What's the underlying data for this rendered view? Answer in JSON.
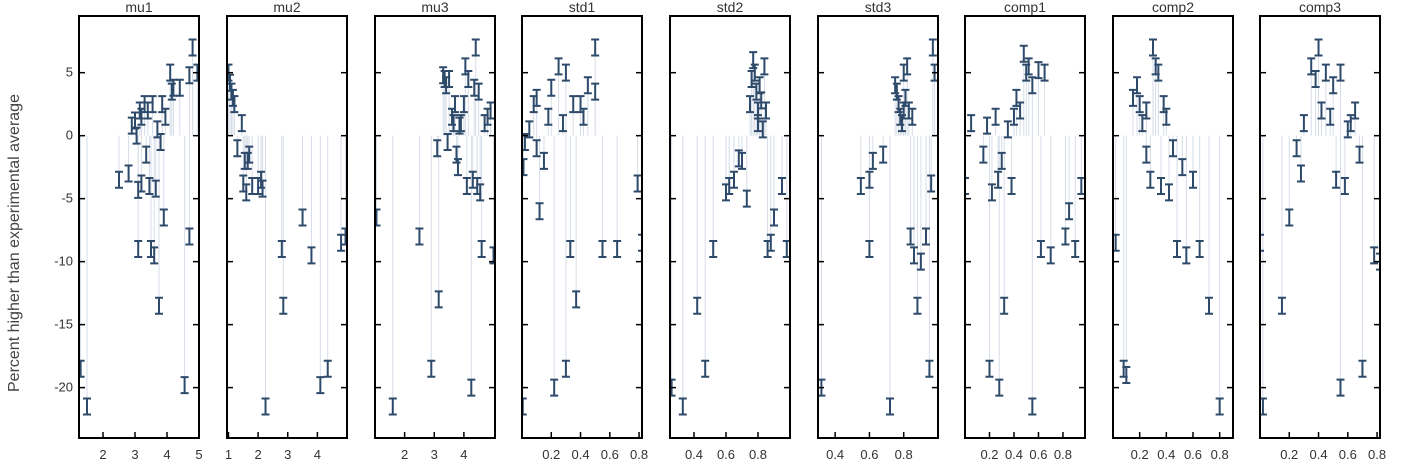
{
  "figure": {
    "ylabel": "Percent higher than experimental average"
  },
  "colors": {
    "marker": "#2e4a6b",
    "stem": "#d6dde8",
    "axis": "#000000"
  },
  "chart_data": {
    "type": "scatter",
    "error_bars": true,
    "grid": false,
    "legend": "none",
    "shared_y": true,
    "ylim": [
      -24,
      9.5
    ],
    "yticks": [
      5,
      0,
      -5,
      -10,
      -15,
      -20
    ],
    "panels": [
      {
        "title": "mu1",
        "xlim": [
          1.25,
          5.0
        ],
        "xticks": [
          2,
          3,
          4,
          5
        ],
        "points": [
          [
            1.3,
            -18.5
          ],
          [
            1.5,
            -21.5
          ],
          [
            2.5,
            -3.5
          ],
          [
            2.8,
            -3.0
          ],
          [
            2.9,
            0.8
          ],
          [
            3.0,
            1.2
          ],
          [
            3.05,
            0.0
          ],
          [
            3.1,
            -4.3
          ],
          [
            3.1,
            -9.0
          ],
          [
            3.15,
            2.0
          ],
          [
            3.2,
            1.5
          ],
          [
            3.2,
            -3.8
          ],
          [
            3.3,
            2.5
          ],
          [
            3.35,
            -1.5
          ],
          [
            3.4,
            2.0
          ],
          [
            3.45,
            -4.0
          ],
          [
            3.5,
            -9.0
          ],
          [
            3.55,
            2.5
          ],
          [
            3.6,
            -9.5
          ],
          [
            3.65,
            -4.2
          ],
          [
            3.7,
            0.5
          ],
          [
            3.75,
            -13.5
          ],
          [
            3.8,
            -0.5
          ],
          [
            3.85,
            2.5
          ],
          [
            3.9,
            -6.5
          ],
          [
            3.95,
            1.5
          ],
          [
            4.1,
            5.0
          ],
          [
            4.15,
            3.5
          ],
          [
            4.2,
            3.8
          ],
          [
            4.4,
            3.8
          ],
          [
            4.55,
            -19.8
          ],
          [
            4.7,
            4.8
          ],
          [
            4.7,
            -8.0
          ],
          [
            4.8,
            7.0
          ],
          [
            4.95,
            5.0
          ]
        ]
      },
      {
        "title": "mu2",
        "xlim": [
          0.95,
          5.0
        ],
        "xticks": [
          1,
          2,
          3,
          4
        ],
        "points": [
          [
            1.0,
            5.0
          ],
          [
            1.05,
            4.2
          ],
          [
            1.1,
            3.5
          ],
          [
            1.15,
            3.0
          ],
          [
            1.2,
            2.5
          ],
          [
            1.3,
            -1.0
          ],
          [
            1.45,
            1.0
          ],
          [
            1.5,
            -3.8
          ],
          [
            1.55,
            -2.0
          ],
          [
            1.6,
            -4.5
          ],
          [
            1.65,
            -2.0
          ],
          [
            1.7,
            -1.5
          ],
          [
            1.8,
            -4.0
          ],
          [
            2.0,
            -4.0
          ],
          [
            2.1,
            -3.5
          ],
          [
            2.15,
            -4.2
          ],
          [
            2.25,
            -21.5
          ],
          [
            2.8,
            -9.0
          ],
          [
            2.85,
            -13.5
          ],
          [
            3.5,
            -6.5
          ],
          [
            3.8,
            -9.5
          ],
          [
            4.1,
            -19.8
          ],
          [
            4.35,
            -18.5
          ],
          [
            4.8,
            -8.5
          ],
          [
            4.95,
            -8.0
          ]
        ]
      },
      {
        "title": "mu3",
        "xlim": [
          1.0,
          5.05
        ],
        "xticks": [
          2,
          3,
          4
        ],
        "points": [
          [
            1.05,
            -6.5
          ],
          [
            1.6,
            -21.5
          ],
          [
            2.5,
            -8.0
          ],
          [
            2.9,
            -18.5
          ],
          [
            3.1,
            -1.0
          ],
          [
            3.15,
            -13.0
          ],
          [
            3.3,
            4.8
          ],
          [
            3.35,
            4.5
          ],
          [
            3.4,
            4.0
          ],
          [
            3.45,
            -0.5
          ],
          [
            3.5,
            4.5
          ],
          [
            3.6,
            1.5
          ],
          [
            3.65,
            1.0
          ],
          [
            3.7,
            2.5
          ],
          [
            3.75,
            -1.5
          ],
          [
            3.8,
            -2.5
          ],
          [
            3.85,
            0.8
          ],
          [
            3.9,
            1.0
          ],
          [
            4.0,
            2.5
          ],
          [
            4.05,
            5.5
          ],
          [
            4.1,
            -4.0
          ],
          [
            4.15,
            4.5
          ],
          [
            4.25,
            -20.0
          ],
          [
            4.3,
            -3.5
          ],
          [
            4.35,
            3.8
          ],
          [
            4.4,
            7.0
          ],
          [
            4.45,
            -4.0
          ],
          [
            4.5,
            3.5
          ],
          [
            4.55,
            -4.5
          ],
          [
            4.6,
            -9.0
          ],
          [
            4.7,
            1.0
          ],
          [
            4.8,
            1.5
          ],
          [
            4.9,
            2.0
          ],
          [
            5.0,
            -9.5
          ]
        ]
      },
      {
        "title": "std1",
        "xlim": [
          0.0,
          0.82
        ],
        "xticks": [
          0.2,
          0.4,
          0.6,
          0.8
        ],
        "points": [
          [
            0.005,
            -21.5
          ],
          [
            0.01,
            -2.5
          ],
          [
            0.02,
            -0.5
          ],
          [
            0.05,
            0.5
          ],
          [
            0.08,
            2.5
          ],
          [
            0.1,
            -1.0
          ],
          [
            0.1,
            3.0
          ],
          [
            0.12,
            -6.0
          ],
          [
            0.15,
            -2.0
          ],
          [
            0.18,
            1.5
          ],
          [
            0.2,
            3.8
          ],
          [
            0.22,
            -20.0
          ],
          [
            0.25,
            5.5
          ],
          [
            0.28,
            1.0
          ],
          [
            0.3,
            5.0
          ],
          [
            0.3,
            -18.5
          ],
          [
            0.33,
            -9.0
          ],
          [
            0.35,
            2.5
          ],
          [
            0.37,
            -13.0
          ],
          [
            0.4,
            2.5
          ],
          [
            0.42,
            1.5
          ],
          [
            0.45,
            4.0
          ],
          [
            0.5,
            7.0
          ],
          [
            0.5,
            3.5
          ],
          [
            0.55,
            -9.0
          ],
          [
            0.65,
            -9.0
          ],
          [
            0.79,
            -3.8
          ],
          [
            0.82,
            -8.5
          ]
        ]
      },
      {
        "title": "std2",
        "xlim": [
          0.25,
          1.0
        ],
        "xticks": [
          0.4,
          0.6,
          0.8
        ],
        "points": [
          [
            0.26,
            -20.0
          ],
          [
            0.33,
            -21.5
          ],
          [
            0.42,
            -13.5
          ],
          [
            0.47,
            -18.5
          ],
          [
            0.52,
            -9.0
          ],
          [
            0.6,
            -4.5
          ],
          [
            0.62,
            -4.0
          ],
          [
            0.65,
            -3.5
          ],
          [
            0.68,
            -1.8
          ],
          [
            0.7,
            -2.0
          ],
          [
            0.73,
            -5.0
          ],
          [
            0.75,
            2.5
          ],
          [
            0.76,
            4.5
          ],
          [
            0.77,
            6.0
          ],
          [
            0.78,
            5.0
          ],
          [
            0.79,
            3.5
          ],
          [
            0.8,
            2.0
          ],
          [
            0.8,
            1.0
          ],
          [
            0.81,
            4.0
          ],
          [
            0.82,
            2.8
          ],
          [
            0.83,
            0.5
          ],
          [
            0.84,
            5.5
          ],
          [
            0.85,
            2.0
          ],
          [
            0.86,
            -9.0
          ],
          [
            0.88,
            -8.5
          ],
          [
            0.9,
            -6.5
          ],
          [
            0.95,
            -4.0
          ],
          [
            0.98,
            -9.0
          ]
        ]
      },
      {
        "title": "std3",
        "xlim": [
          0.3,
          1.0
        ],
        "xticks": [
          0.4,
          0.6,
          0.8
        ],
        "points": [
          [
            0.32,
            -20.0
          ],
          [
            0.55,
            -4.0
          ],
          [
            0.6,
            -3.5
          ],
          [
            0.6,
            -9.0
          ],
          [
            0.62,
            -2.0
          ],
          [
            0.68,
            -1.5
          ],
          [
            0.72,
            -21.5
          ],
          [
            0.75,
            4.0
          ],
          [
            0.76,
            3.5
          ],
          [
            0.77,
            2.5
          ],
          [
            0.78,
            1.5
          ],
          [
            0.79,
            1.0
          ],
          [
            0.8,
            5.0
          ],
          [
            0.8,
            2.0
          ],
          [
            0.81,
            3.0
          ],
          [
            0.82,
            5.5
          ],
          [
            0.83,
            2.0
          ],
          [
            0.84,
            -8.0
          ],
          [
            0.85,
            1.5
          ],
          [
            0.86,
            -9.5
          ],
          [
            0.88,
            -13.5
          ],
          [
            0.9,
            -10.0
          ],
          [
            0.93,
            -8.0
          ],
          [
            0.95,
            -18.5
          ],
          [
            0.96,
            -3.8
          ],
          [
            0.97,
            7.0
          ],
          [
            0.98,
            5.0
          ]
        ]
      },
      {
        "title": "comp1",
        "xlim": [
          0.0,
          0.98
        ],
        "xticks": [
          0.2,
          0.4,
          0.6,
          0.8
        ],
        "points": [
          [
            0.0,
            -4.0
          ],
          [
            0.05,
            1.0
          ],
          [
            0.15,
            -1.5
          ],
          [
            0.18,
            0.8
          ],
          [
            0.2,
            -18.5
          ],
          [
            0.22,
            -4.5
          ],
          [
            0.25,
            1.5
          ],
          [
            0.27,
            -3.5
          ],
          [
            0.28,
            -20.0
          ],
          [
            0.3,
            -2.0
          ],
          [
            0.32,
            -13.5
          ],
          [
            0.35,
            0.5
          ],
          [
            0.38,
            -4.0
          ],
          [
            0.4,
            1.5
          ],
          [
            0.42,
            3.0
          ],
          [
            0.45,
            2.0
          ],
          [
            0.48,
            6.5
          ],
          [
            0.5,
            5.0
          ],
          [
            0.52,
            5.5
          ],
          [
            0.55,
            4.0
          ],
          [
            0.55,
            -21.5
          ],
          [
            0.6,
            5.2
          ],
          [
            0.62,
            -9.0
          ],
          [
            0.65,
            5.0
          ],
          [
            0.7,
            -9.5
          ],
          [
            0.82,
            -8.0
          ],
          [
            0.85,
            -6.0
          ],
          [
            0.9,
            -9.0
          ],
          [
            0.95,
            -4.0
          ]
        ]
      },
      {
        "title": "comp2",
        "xlim": [
          0.0,
          0.9
        ],
        "xticks": [
          0.2,
          0.4,
          0.6,
          0.8
        ],
        "points": [
          [
            0.02,
            -8.5
          ],
          [
            0.08,
            -18.5
          ],
          [
            0.1,
            -19.0
          ],
          [
            0.15,
            3.0
          ],
          [
            0.18,
            4.0
          ],
          [
            0.2,
            2.5
          ],
          [
            0.22,
            1.0
          ],
          [
            0.25,
            2.0
          ],
          [
            0.25,
            -1.5
          ],
          [
            0.28,
            -3.5
          ],
          [
            0.3,
            7.0
          ],
          [
            0.32,
            5.5
          ],
          [
            0.34,
            5.0
          ],
          [
            0.36,
            -4.0
          ],
          [
            0.38,
            2.5
          ],
          [
            0.4,
            1.5
          ],
          [
            0.42,
            -4.5
          ],
          [
            0.45,
            -1.0
          ],
          [
            0.48,
            -9.0
          ],
          [
            0.52,
            -2.5
          ],
          [
            0.55,
            -9.5
          ],
          [
            0.6,
            -3.5
          ],
          [
            0.65,
            -9.0
          ],
          [
            0.72,
            -13.5
          ],
          [
            0.8,
            -21.5
          ]
        ]
      },
      {
        "title": "comp3",
        "xlim": [
          0.0,
          0.82
        ],
        "xticks": [
          0.2,
          0.4,
          0.6,
          0.8
        ],
        "points": [
          [
            0.0,
            -8.5
          ],
          [
            0.02,
            -21.5
          ],
          [
            0.15,
            -13.5
          ],
          [
            0.2,
            -6.5
          ],
          [
            0.25,
            -1.0
          ],
          [
            0.28,
            -3.0
          ],
          [
            0.3,
            1.0
          ],
          [
            0.35,
            5.5
          ],
          [
            0.38,
            4.5
          ],
          [
            0.4,
            7.0
          ],
          [
            0.42,
            2.0
          ],
          [
            0.45,
            5.0
          ],
          [
            0.48,
            1.5
          ],
          [
            0.5,
            4.0
          ],
          [
            0.52,
            -3.5
          ],
          [
            0.55,
            -20.0
          ],
          [
            0.55,
            5.0
          ],
          [
            0.58,
            -4.0
          ],
          [
            0.6,
            0.5
          ],
          [
            0.62,
            1.0
          ],
          [
            0.65,
            2.0
          ],
          [
            0.68,
            -1.5
          ],
          [
            0.7,
            -18.5
          ],
          [
            0.78,
            -9.5
          ],
          [
            0.82,
            -10.0
          ]
        ]
      }
    ]
  }
}
